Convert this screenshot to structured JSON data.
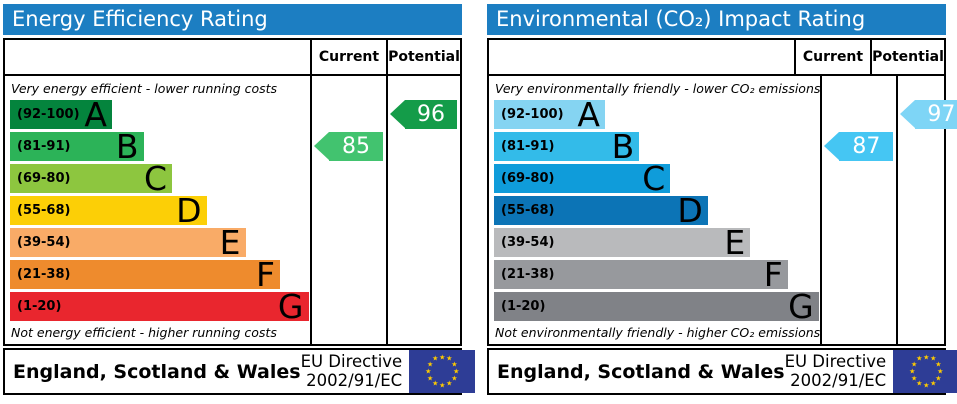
{
  "panels": [
    {
      "id": "energy",
      "title": "Energy Efficiency Rating",
      "accent": "#1c7ec2",
      "columns": {
        "current": "Current",
        "potential": "Potential"
      },
      "top_note": "Very energy efficient - lower running costs",
      "bottom_note": "Not energy efficient - higher running costs",
      "bands": [
        {
          "range": "(92-100)",
          "letter": "A",
          "color": "#04843d",
          "width_pct": 34
        },
        {
          "range": "(81-91)",
          "letter": "B",
          "color": "#2cb358",
          "width_pct": 44.5
        },
        {
          "range": "(69-80)",
          "letter": "C",
          "color": "#8dc63f",
          "width_pct": 54
        },
        {
          "range": "(55-68)",
          "letter": "D",
          "color": "#fccf06",
          "width_pct": 65.5
        },
        {
          "range": "(39-54)",
          "letter": "E",
          "color": "#f9ab67",
          "width_pct": 78.5
        },
        {
          "range": "(21-38)",
          "letter": "F",
          "color": "#ee8b2d",
          "width_pct": 90
        },
        {
          "range": "(1-20)",
          "letter": "G",
          "color": "#e9262e",
          "width_pct": 99.5
        }
      ],
      "current": {
        "value": "85",
        "band_index": 1,
        "color": "#42c36f"
      },
      "potential": {
        "value": "96",
        "band_index": 0,
        "color": "#149c49"
      },
      "footer": {
        "region": "England, Scotland & Wales",
        "directive": [
          "EU Directive",
          "2002/91/EC"
        ],
        "flag_color": "#2e3d96",
        "star_color": "#ffcc00"
      }
    },
    {
      "id": "environmental",
      "title": "Environmental (CO₂) Impact Rating",
      "accent": "#1c7ec2",
      "columns": {
        "current": "Current",
        "potential": "Potential"
      },
      "top_note": "Very environmentally friendly - lower CO₂ emissions",
      "bottom_note": "Not environmentally friendly - higher CO₂ emissions",
      "bands": [
        {
          "range": "(92-100)",
          "letter": "A",
          "color": "#85d4f2",
          "width_pct": 34
        },
        {
          "range": "(81-91)",
          "letter": "B",
          "color": "#33bbe9",
          "width_pct": 44.5
        },
        {
          "range": "(69-80)",
          "letter": "C",
          "color": "#0f9cda",
          "width_pct": 54
        },
        {
          "range": "(55-68)",
          "letter": "D",
          "color": "#0c74b6",
          "width_pct": 65.5
        },
        {
          "range": "(39-54)",
          "letter": "E",
          "color": "#b9babc",
          "width_pct": 78.5
        },
        {
          "range": "(21-38)",
          "letter": "F",
          "color": "#97999d",
          "width_pct": 90
        },
        {
          "range": "(1-20)",
          "letter": "G",
          "color": "#808287",
          "width_pct": 99.5
        }
      ],
      "current": {
        "value": "87",
        "band_index": 1,
        "color": "#45c6f3"
      },
      "potential": {
        "value": "97",
        "band_index": 0,
        "color": "#7ed5f6"
      },
      "footer": {
        "region": "England, Scotland & Wales",
        "directive": [
          "EU Directive",
          "2002/91/EC"
        ],
        "flag_color": "#2e3d96",
        "star_color": "#ffcc00"
      }
    }
  ],
  "chart_data": [
    {
      "type": "bar",
      "title": "Energy Efficiency Rating",
      "categories": [
        "A (92-100)",
        "B (81-91)",
        "C (69-80)",
        "D (55-68)",
        "E (39-54)",
        "F (21-38)",
        "G (1-20)"
      ],
      "values": [
        34,
        44.5,
        54,
        65.5,
        78.5,
        90,
        99.5
      ],
      "scale": [
        1,
        100
      ],
      "current_rating": 85,
      "current_band": "B",
      "potential_rating": 96,
      "potential_band": "A",
      "top_annotation": "Very energy efficient - lower running costs",
      "bottom_annotation": "Not energy efficient - higher running costs"
    },
    {
      "type": "bar",
      "title": "Environmental (CO₂) Impact Rating",
      "categories": [
        "A (92-100)",
        "B (81-91)",
        "C (69-80)",
        "D (55-68)",
        "E (39-54)",
        "F (21-38)",
        "G (1-20)"
      ],
      "values": [
        34,
        44.5,
        54,
        65.5,
        78.5,
        90,
        99.5
      ],
      "scale": [
        1,
        100
      ],
      "current_rating": 87,
      "current_band": "B",
      "potential_rating": 97,
      "potential_band": "A",
      "top_annotation": "Very environmentally friendly - lower CO₂ emissions",
      "bottom_annotation": "Not environmentally friendly - higher CO₂ emissions"
    }
  ]
}
